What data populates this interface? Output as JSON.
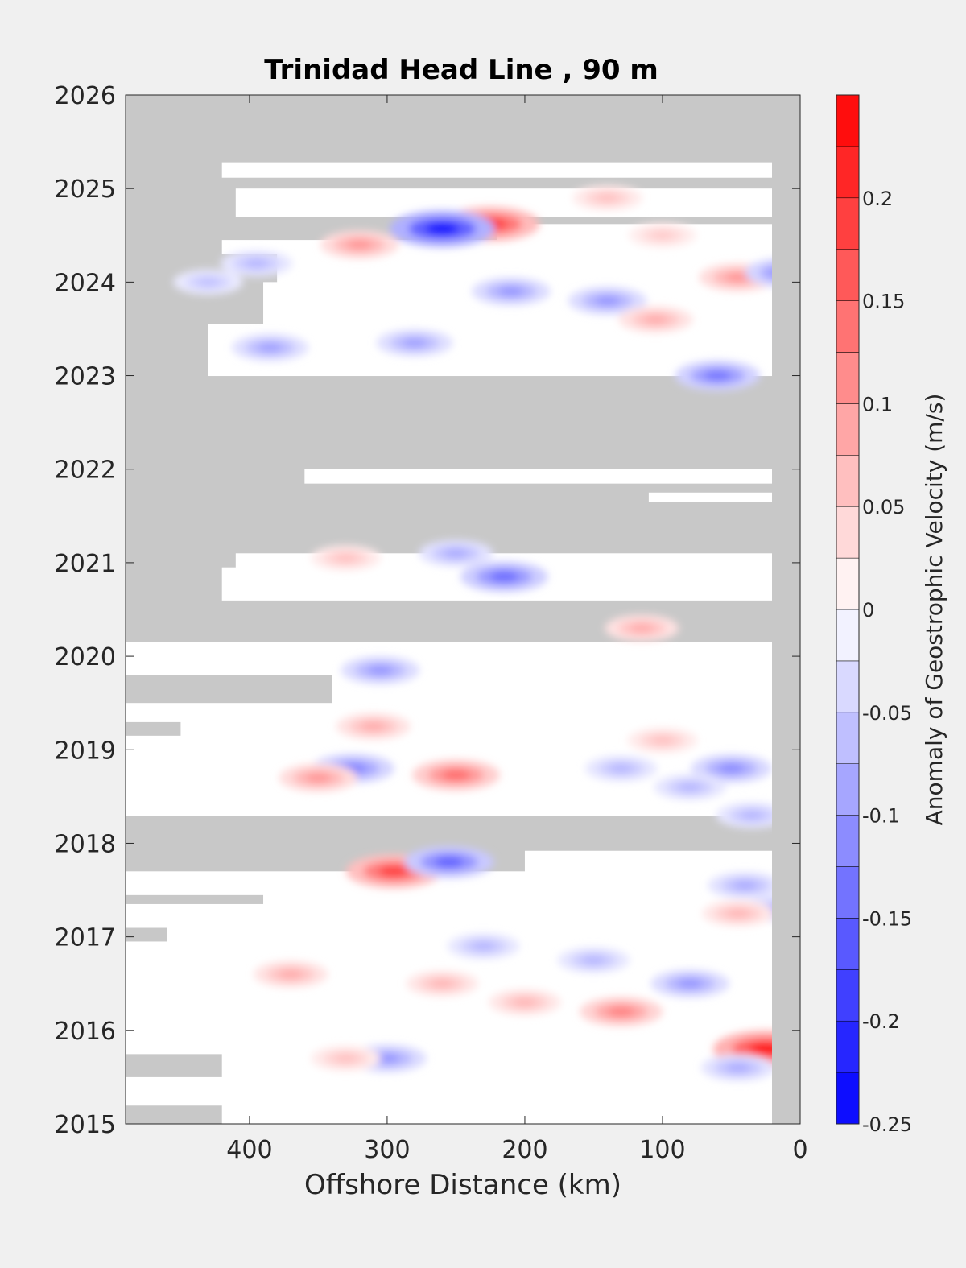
{
  "chart_data": {
    "type": "heatmap",
    "title": "Trinidad Head Line , 90 m",
    "xlabel": "Offshore Distance (km)",
    "ylabel": "",
    "xlim": [
      490,
      0
    ],
    "ylim": [
      2015,
      2026
    ],
    "x_reversed": true,
    "xticks": [
      400,
      300,
      200,
      100,
      0
    ],
    "xtick_labels": [
      "400",
      "300",
      "200",
      "100",
      "0"
    ],
    "yticks": [
      2015,
      2016,
      2017,
      2018,
      2019,
      2020,
      2021,
      2022,
      2023,
      2024,
      2025,
      2026
    ],
    "ytick_labels": [
      "2015",
      "2016",
      "2017",
      "2018",
      "2019",
      "2020",
      "2021",
      "2022",
      "2023",
      "2024",
      "2025",
      "2026"
    ],
    "grid": false,
    "missing_color": "#c8c8c8",
    "colorbar": {
      "label": "Anomaly of Geostrophic Velocity (m/s)",
      "range": [
        -0.25,
        0.25
      ],
      "levels": 20,
      "ticks": [
        0.2,
        0.15,
        0.1,
        0.05,
        0,
        -0.05,
        -0.1,
        -0.15,
        -0.2,
        -0.25
      ],
      "tick_labels": [
        "0.2",
        "0.15",
        "0.1",
        "0.05",
        "0",
        "-0.05",
        "-0.1",
        "-0.15",
        "-0.2",
        "-0.25"
      ],
      "low_color": "#0000ff",
      "mid_color": "#ffffff",
      "high_color": "#ff0000"
    },
    "data_coverage_km": [
      {
        "start": 2015.0,
        "end": 2015.2,
        "x_max": 420
      },
      {
        "start": 2015.2,
        "end": 2015.5,
        "x_max": 490
      },
      {
        "start": 2015.5,
        "end": 2015.75,
        "x_max": 420
      },
      {
        "start": 2015.75,
        "end": 2016.95,
        "x_max": 490
      },
      {
        "start": 2016.95,
        "end": 2017.1,
        "x_max": 460
      },
      {
        "start": 2017.1,
        "end": 2017.35,
        "x_max": 490
      },
      {
        "start": 2017.35,
        "end": 2017.45,
        "x_max": 390
      },
      {
        "start": 2017.45,
        "end": 2017.7,
        "x_max": 490
      },
      {
        "start": 2017.7,
        "end": 2017.92,
        "x_max": 200
      },
      {
        "start": 2018.3,
        "end": 2019.15,
        "x_max": 490
      },
      {
        "start": 2019.15,
        "end": 2019.3,
        "x_max": 450
      },
      {
        "start": 2019.3,
        "end": 2019.5,
        "x_max": 490
      },
      {
        "start": 2019.5,
        "end": 2019.8,
        "x_max": 340
      },
      {
        "start": 2019.8,
        "end": 2020.15,
        "x_max": 490
      },
      {
        "start": 2020.6,
        "end": 2020.95,
        "x_max": 420
      },
      {
        "start": 2020.95,
        "end": 2021.1,
        "x_max": 410
      },
      {
        "start": 2021.65,
        "end": 2021.75,
        "x_max": 110
      },
      {
        "start": 2021.85,
        "end": 2022.0,
        "x_max": 360
      },
      {
        "start": 2023.0,
        "end": 2023.4,
        "x_max": 430
      },
      {
        "start": 2023.4,
        "end": 2023.55,
        "x_max": 430
      },
      {
        "start": 2023.55,
        "end": 2023.85,
        "x_max": 390
      },
      {
        "start": 2023.85,
        "end": 2024.0,
        "x_max": 390
      },
      {
        "start": 2024.0,
        "end": 2024.3,
        "x_max": 380
      },
      {
        "start": 2024.3,
        "end": 2024.45,
        "x_max": 420
      },
      {
        "start": 2024.45,
        "end": 2024.62,
        "x_max": 220
      },
      {
        "start": 2024.7,
        "end": 2025.0,
        "x_max": 410
      },
      {
        "start": 2025.12,
        "end": 2025.28,
        "x_max": 420
      }
    ],
    "anomaly_features": [
      {
        "x": 25,
        "y": 2015.8,
        "value": 0.22
      },
      {
        "x": 225,
        "y": 2024.62,
        "value": 0.19
      },
      {
        "x": 260,
        "y": 2024.57,
        "value": -0.22
      },
      {
        "x": 295,
        "y": 2017.7,
        "value": 0.18
      },
      {
        "x": 255,
        "y": 2017.8,
        "value": -0.15
      },
      {
        "x": 250,
        "y": 2018.73,
        "value": 0.14
      },
      {
        "x": 130,
        "y": 2016.2,
        "value": 0.12
      },
      {
        "x": 215,
        "y": 2020.85,
        "value": -0.14
      },
      {
        "x": 60,
        "y": 2023.0,
        "value": -0.13
      },
      {
        "x": 45,
        "y": 2024.05,
        "value": 0.1
      },
      {
        "x": 10,
        "y": 2024.1,
        "value": -0.12
      },
      {
        "x": 320,
        "y": 2024.4,
        "value": 0.1
      },
      {
        "x": 325,
        "y": 2018.8,
        "value": -0.12
      },
      {
        "x": 350,
        "y": 2018.7,
        "value": 0.1
      },
      {
        "x": 50,
        "y": 2018.8,
        "value": -0.11
      },
      {
        "x": 80,
        "y": 2016.5,
        "value": -0.1
      },
      {
        "x": 210,
        "y": 2023.9,
        "value": -0.1
      },
      {
        "x": 140,
        "y": 2023.8,
        "value": -0.1
      },
      {
        "x": 105,
        "y": 2023.6,
        "value": 0.08
      },
      {
        "x": 300,
        "y": 2015.7,
        "value": -0.1
      },
      {
        "x": 45,
        "y": 2015.6,
        "value": -0.08
      },
      {
        "x": 305,
        "y": 2019.85,
        "value": -0.1
      },
      {
        "x": 280,
        "y": 2023.35,
        "value": -0.09
      },
      {
        "x": 385,
        "y": 2023.3,
        "value": -0.09
      },
      {
        "x": 115,
        "y": 2020.3,
        "value": 0.08
      },
      {
        "x": 310,
        "y": 2019.25,
        "value": 0.08
      },
      {
        "x": 370,
        "y": 2016.6,
        "value": 0.08
      },
      {
        "x": 15,
        "y": 2017.3,
        "value": -0.08
      },
      {
        "x": 45,
        "y": 2017.25,
        "value": 0.07
      },
      {
        "x": 35,
        "y": 2018.3,
        "value": -0.07
      },
      {
        "x": 40,
        "y": 2017.55,
        "value": -0.08
      },
      {
        "x": 150,
        "y": 2016.75,
        "value": -0.07
      },
      {
        "x": 230,
        "y": 2016.9,
        "value": -0.07
      },
      {
        "x": 200,
        "y": 2016.3,
        "value": 0.07
      },
      {
        "x": 260,
        "y": 2016.5,
        "value": 0.07
      },
      {
        "x": 330,
        "y": 2015.7,
        "value": 0.06
      },
      {
        "x": 100,
        "y": 2019.1,
        "value": 0.06
      },
      {
        "x": 80,
        "y": 2018.6,
        "value": -0.07
      },
      {
        "x": 130,
        "y": 2018.8,
        "value": -0.07
      },
      {
        "x": 250,
        "y": 2021.1,
        "value": -0.08
      },
      {
        "x": 330,
        "y": 2021.05,
        "value": 0.06
      },
      {
        "x": 140,
        "y": 2024.9,
        "value": 0.06
      },
      {
        "x": 100,
        "y": 2024.5,
        "value": 0.05
      },
      {
        "x": 395,
        "y": 2024.2,
        "value": -0.07
      },
      {
        "x": 430,
        "y": 2024.0,
        "value": -0.06
      }
    ]
  }
}
